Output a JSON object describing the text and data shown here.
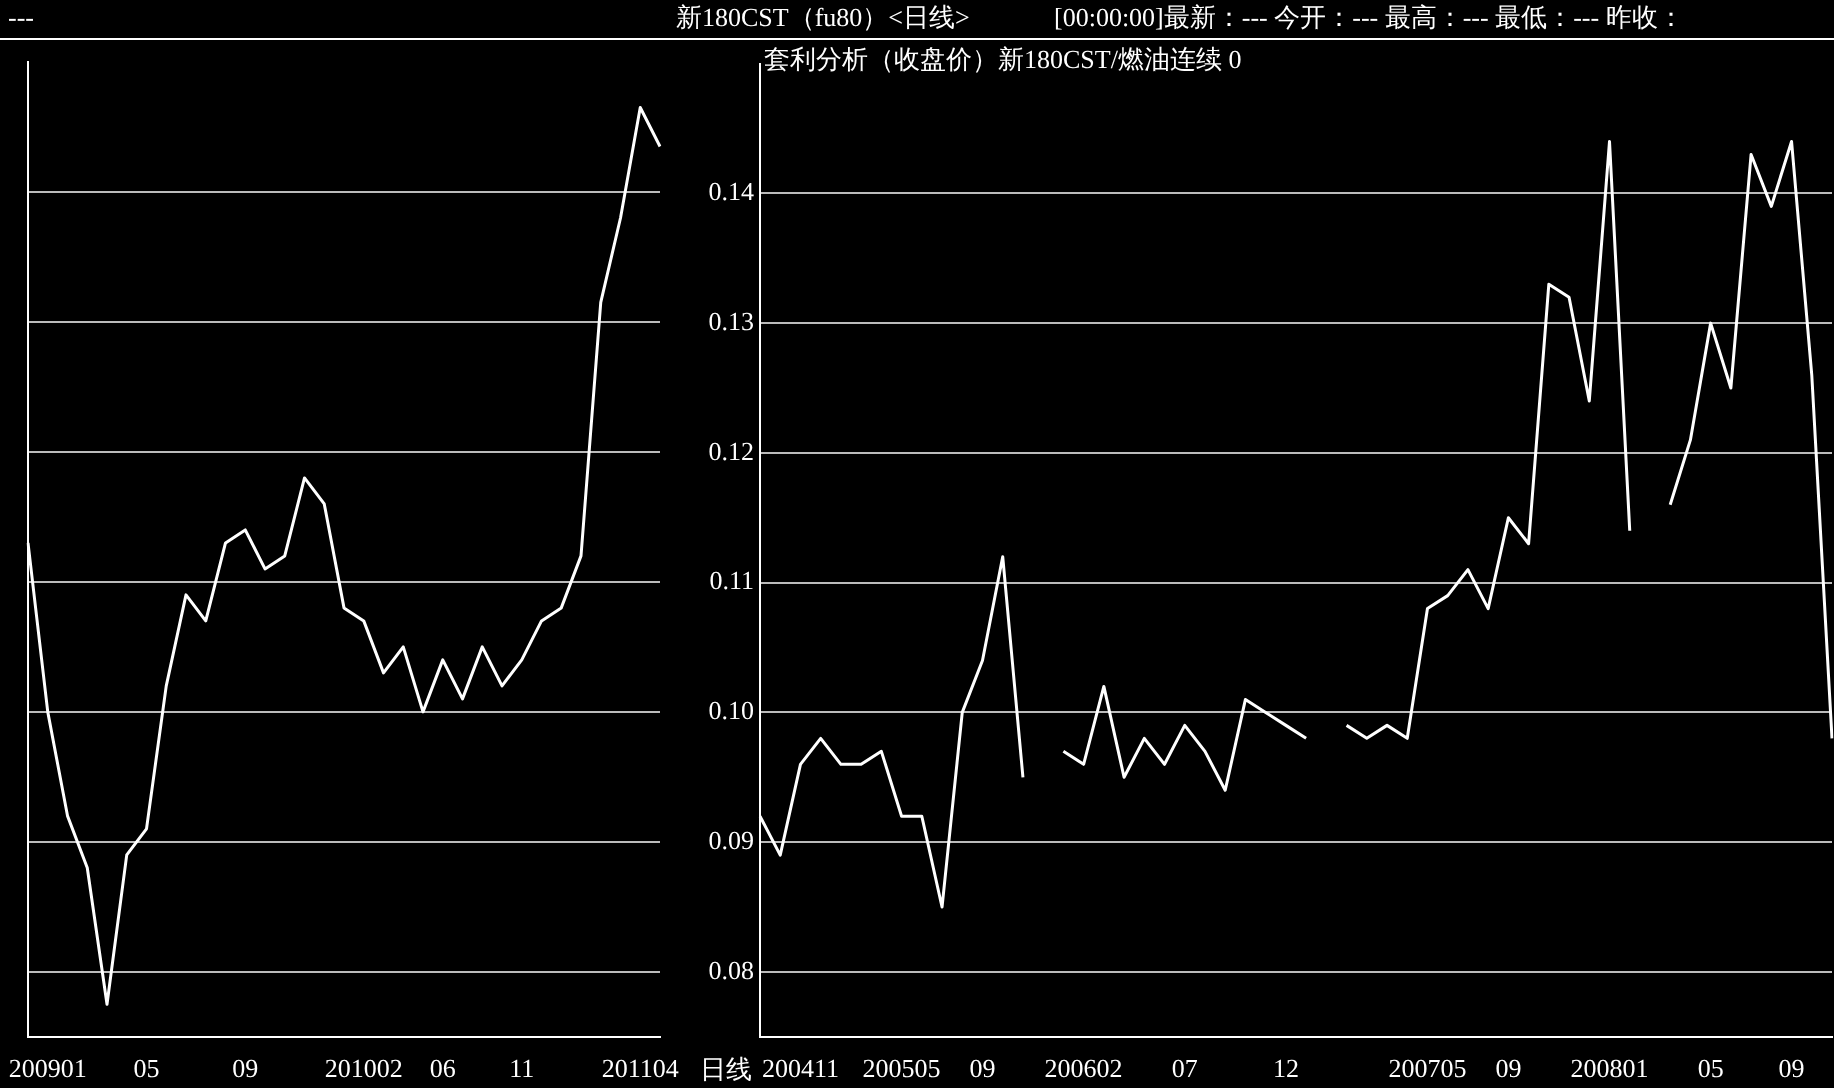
{
  "chart_data": [
    {
      "type": "line",
      "annotations": [
        "---"
      ],
      "categories": [
        null,
        "200901",
        null,
        null,
        null,
        null,
        "05",
        null,
        null,
        null,
        null,
        "09",
        null,
        null,
        null,
        null,
        null,
        "201002",
        null,
        null,
        null,
        "06",
        null,
        null,
        null,
        "11",
        null,
        null,
        null,
        null,
        null,
        "201104",
        null
      ],
      "series": [
        {
          "color": "#ffffff",
          "values": [
            0.113,
            0.1,
            0.092,
            0.088,
            0.0775,
            0.089,
            0.091,
            0.102,
            0.109,
            0.107,
            0.113,
            0.114,
            0.111,
            0.112,
            0.118,
            0.116,
            0.108,
            0.107,
            0.103,
            0.105,
            0.1,
            0.104,
            0.101,
            0.105,
            0.102,
            0.104,
            0.107,
            0.108,
            0.112,
            0.1315,
            0.138,
            0.1465,
            0.1435
          ]
        }
      ],
      "ylim": [
        0.075,
        0.15
      ],
      "yticks": [
        0.08,
        0.09,
        0.1,
        0.11,
        0.12,
        0.13,
        0.14
      ],
      "tick_labels": "x",
      "grid": "y",
      "legend": false,
      "line_style": "solid",
      "marker": "none"
    },
    {
      "type": "line",
      "title": "新180CST（fu80）<日线>",
      "subtitle": "套利分析（收盘价）新180CST/燃油连续   0",
      "annotations": [
        "[00:00:00]最新：--- 今开：--- 最高：--- 最低：--- 昨收：",
        "日线"
      ],
      "categories": [
        null,
        null,
        "200411",
        null,
        null,
        null,
        null,
        "200505",
        null,
        null,
        null,
        "09",
        null,
        null,
        null,
        null,
        "200602",
        null,
        null,
        null,
        null,
        "07",
        null,
        null,
        null,
        null,
        "12",
        null,
        null,
        null,
        null,
        null,
        null,
        "200705",
        null,
        null,
        null,
        "09",
        null,
        null,
        null,
        null,
        "200801",
        null,
        null,
        null,
        null,
        "05",
        null,
        null,
        null,
        "09",
        null,
        null
      ],
      "series": [
        {
          "color": "#ffffff",
          "values": [
            0.092,
            0.089,
            0.096,
            0.098,
            0.096,
            0.096,
            0.097,
            0.092,
            0.092,
            0.085,
            0.1,
            0.104,
            0.112,
            0.095,
            null,
            0.097,
            0.096,
            0.102,
            0.095,
            0.098,
            0.096,
            0.099,
            0.097,
            0.094,
            0.101,
            0.1,
            0.099,
            0.098,
            null,
            0.099,
            0.098,
            0.099,
            0.098,
            0.108,
            0.109,
            0.111,
            0.108,
            0.115,
            0.113,
            0.133,
            0.132,
            0.124,
            0.144,
            0.114,
            null,
            0.116,
            0.121,
            0.13,
            0.125,
            0.143,
            0.139,
            0.144,
            0.126,
            0.098
          ]
        }
      ],
      "ylim": [
        0.075,
        0.15
      ],
      "yticks": [
        {
          "value": 0.08,
          "label": "0.08"
        },
        {
          "value": 0.09,
          "label": "0.09"
        },
        {
          "value": 0.1,
          "label": "0.10"
        },
        {
          "value": 0.11,
          "label": "0.11"
        },
        {
          "value": 0.12,
          "label": "0.12"
        },
        {
          "value": 0.13,
          "label": "0.13"
        },
        {
          "value": 0.14,
          "label": "0.14"
        }
      ],
      "grid": "y",
      "legend": false,
      "line_style": "solid",
      "marker": "none"
    }
  ]
}
